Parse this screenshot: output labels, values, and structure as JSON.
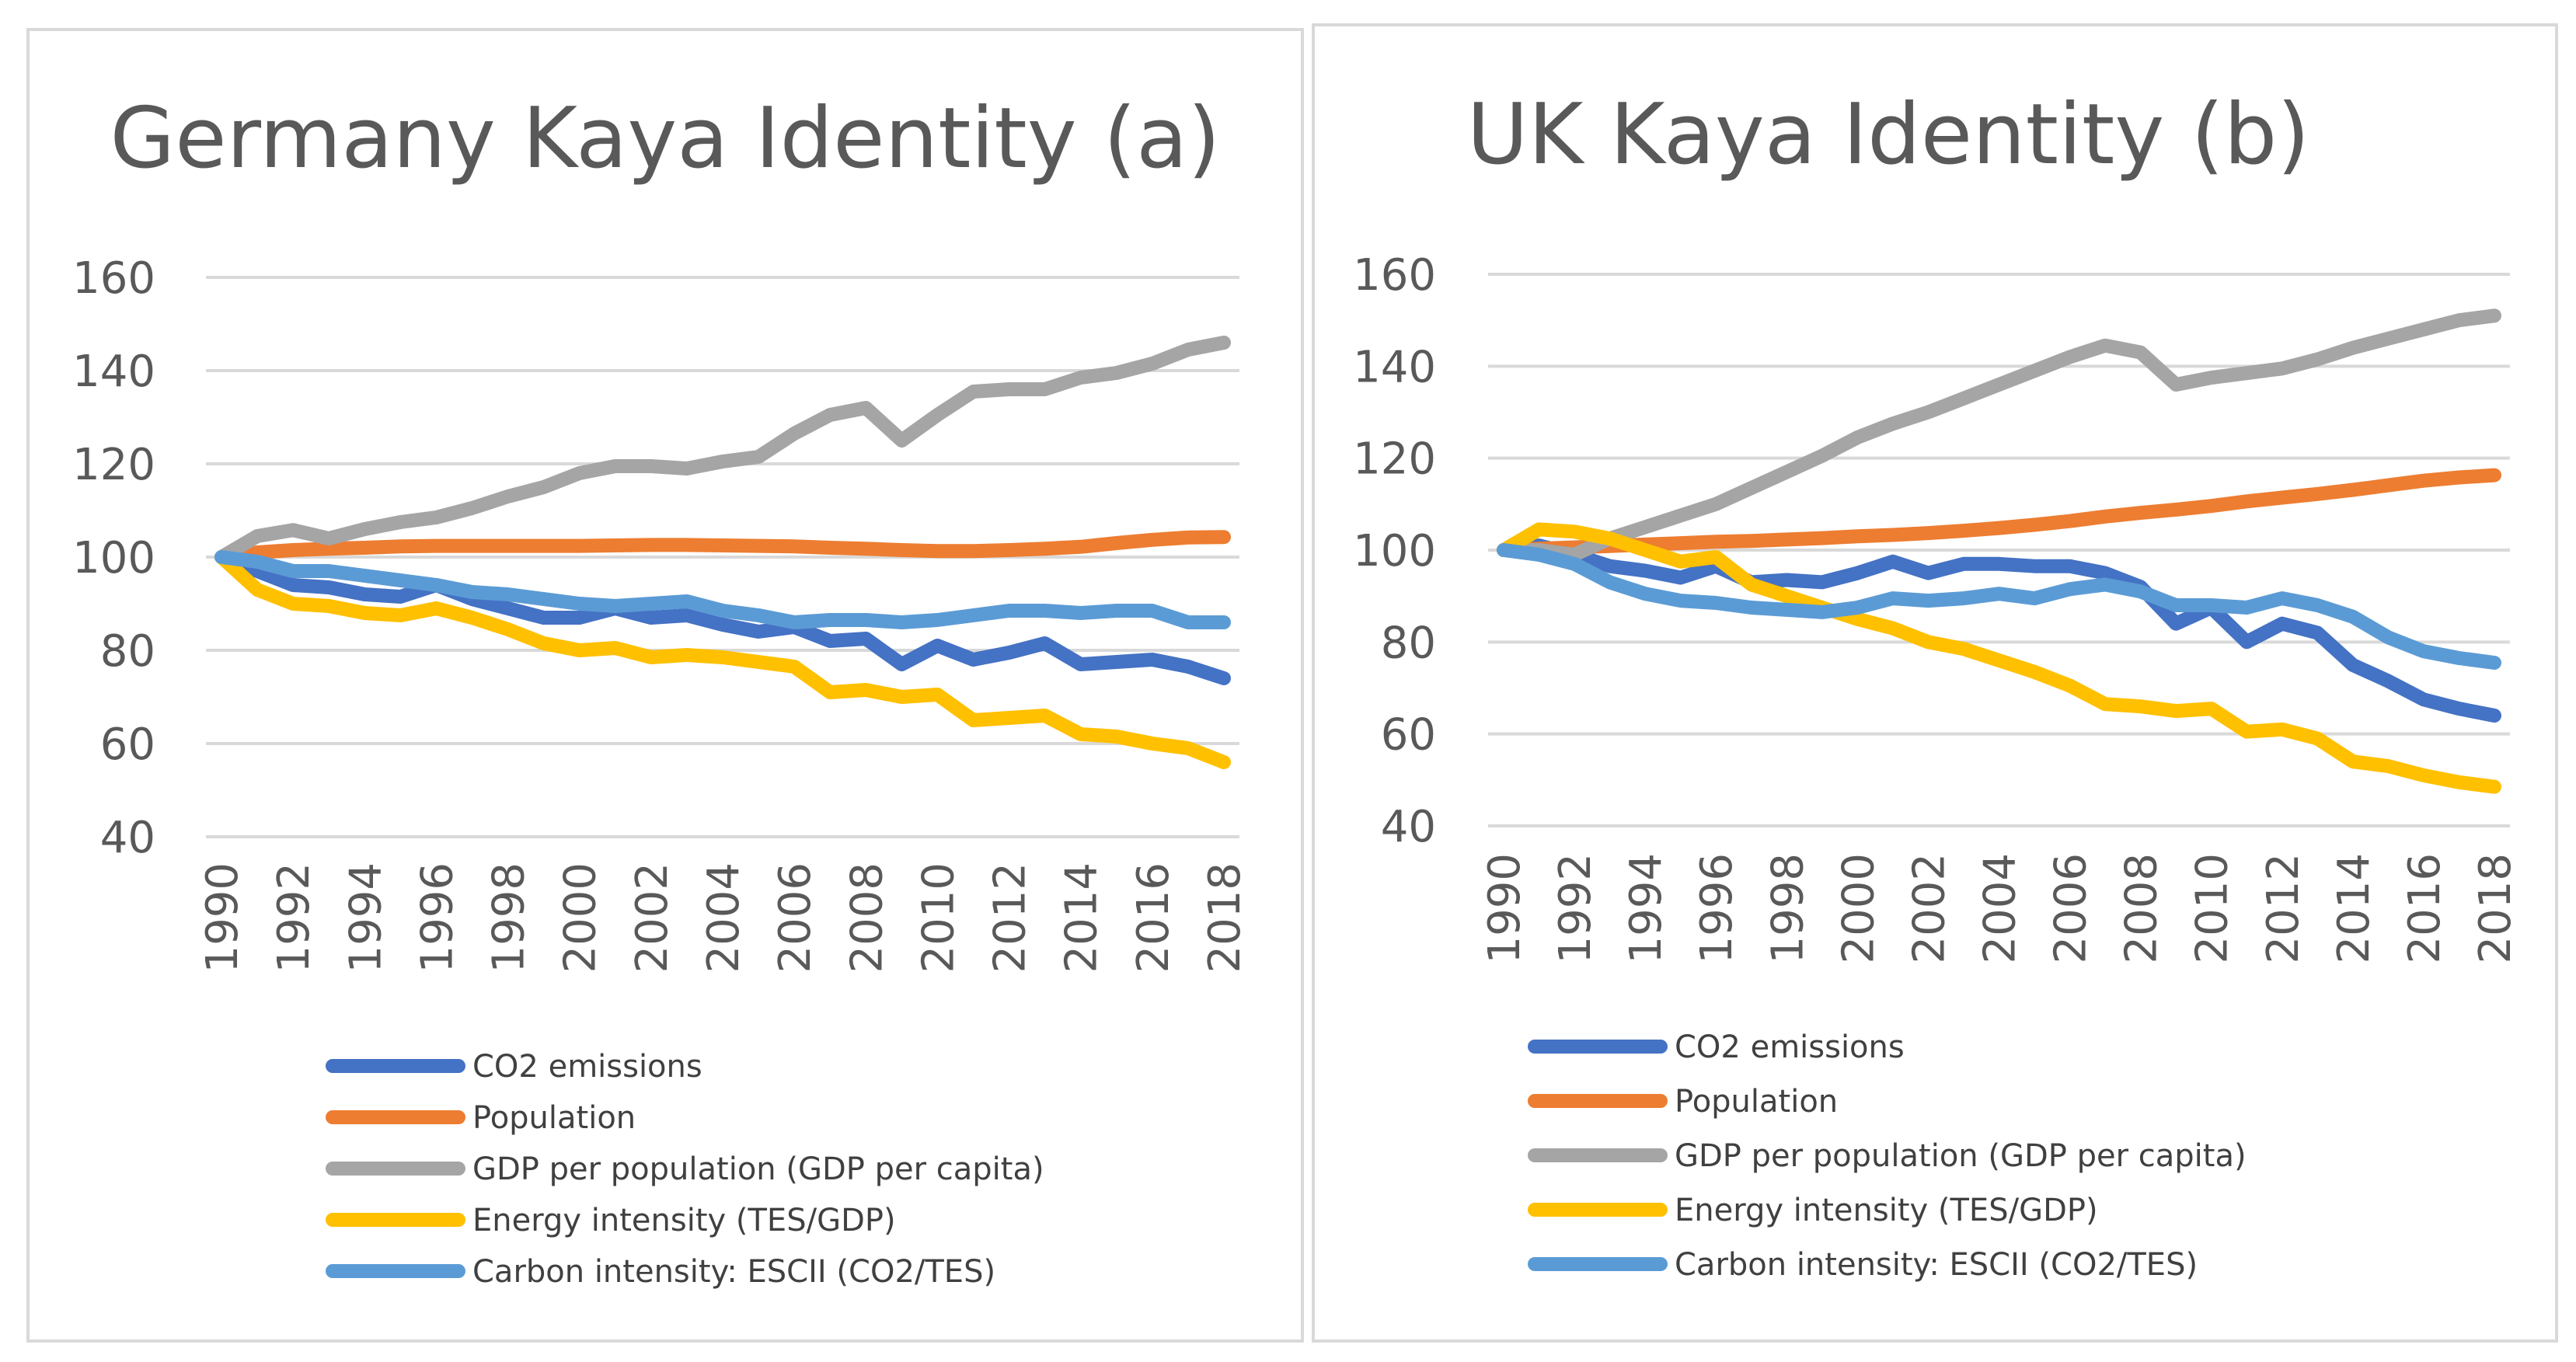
{
  "chart_data": [
    {
      "type": "line",
      "title": "Germany Kaya Identity (a)",
      "xlabel": "",
      "ylabel": "",
      "ylim": [
        40,
        160
      ],
      "yticks": [
        40,
        60,
        80,
        100,
        120,
        140,
        160
      ],
      "grid": true,
      "x": [
        1990,
        1991,
        1992,
        1993,
        1994,
        1995,
        1996,
        1997,
        1998,
        1999,
        2000,
        2001,
        2002,
        2003,
        2004,
        2005,
        2006,
        2007,
        2008,
        2009,
        2010,
        2011,
        2012,
        2013,
        2014,
        2015,
        2016,
        2017,
        2018
      ],
      "xticks": [
        1990,
        1992,
        1994,
        1996,
        1998,
        2000,
        2002,
        2004,
        2006,
        2008,
        2010,
        2012,
        2014,
        2016,
        2018
      ],
      "legend_position": "bottom",
      "series": [
        {
          "name": "CO2 emissions",
          "color": "#4472C4",
          "values": [
            100,
            97,
            94,
            93.5,
            92,
            91.5,
            94,
            91,
            89,
            87,
            87,
            89,
            87,
            87.5,
            85.5,
            84,
            85,
            82,
            82.5,
            77,
            81,
            78,
            79.5,
            81.5,
            77,
            77.5,
            78,
            76.5,
            74
          ]
        },
        {
          "name": "Population",
          "color": "#ED7D31",
          "values": [
            100,
            101,
            101.5,
            101.8,
            102,
            102.3,
            102.4,
            102.4,
            102.4,
            102.4,
            102.4,
            102.5,
            102.6,
            102.6,
            102.5,
            102.4,
            102.3,
            102,
            101.8,
            101.5,
            101.3,
            101.3,
            101.5,
            101.8,
            102.2,
            103,
            103.7,
            104.2,
            104.3
          ]
        },
        {
          "name": "GDP per population (GDP per capita)",
          "color": "#A5A5A5",
          "values": [
            100,
            104.5,
            105.8,
            104,
            106,
            107.5,
            108.5,
            110.5,
            113,
            115,
            118,
            119.5,
            119.5,
            119,
            120.5,
            121.5,
            126.5,
            130.5,
            132,
            125,
            130.5,
            135.5,
            136,
            136,
            138.5,
            139.5,
            141.5,
            144.5,
            146
          ]
        },
        {
          "name": "Energy intensity (TES/GDP)",
          "color": "#FFC000",
          "values": [
            100,
            93,
            90,
            89.5,
            88,
            87.5,
            89,
            87,
            84.5,
            81.5,
            80,
            80.5,
            78.5,
            79,
            78.5,
            77.5,
            76.5,
            71,
            71.5,
            70,
            70.5,
            65,
            65.5,
            66,
            62,
            61.5,
            60,
            59,
            56
          ]
        },
        {
          "name": "Carbon intensity: ESCII (CO2/TES)",
          "color": "#5B9BD5",
          "values": [
            100,
            99,
            97,
            97,
            96,
            95,
            94,
            92.5,
            92,
            91,
            90,
            89.5,
            90,
            90.5,
            88.5,
            87.5,
            86,
            86.5,
            86.5,
            86,
            86.5,
            87.5,
            88.5,
            88.5,
            88,
            88.5,
            88.5,
            86,
            86
          ]
        }
      ]
    },
    {
      "type": "line",
      "title": "UK Kaya Identity (b)",
      "xlabel": "",
      "ylabel": "",
      "ylim": [
        40,
        160
      ],
      "yticks": [
        40,
        60,
        80,
        100,
        120,
        140,
        160
      ],
      "grid": true,
      "x": [
        1990,
        1991,
        1992,
        1993,
        1994,
        1995,
        1996,
        1997,
        1998,
        1999,
        2000,
        2001,
        2002,
        2003,
        2004,
        2005,
        2006,
        2007,
        2008,
        2009,
        2010,
        2011,
        2012,
        2013,
        2014,
        2015,
        2016,
        2017,
        2018
      ],
      "xticks": [
        1990,
        1992,
        1994,
        1996,
        1998,
        2000,
        2002,
        2004,
        2006,
        2008,
        2010,
        2012,
        2014,
        2016,
        2018
      ],
      "legend_position": "bottom",
      "series": [
        {
          "name": "CO2 emissions",
          "color": "#4472C4",
          "values": [
            100,
            101,
            99,
            96.5,
            95.5,
            94,
            96.5,
            93,
            93.5,
            93,
            95,
            97.5,
            95,
            97,
            97,
            96.5,
            96.5,
            95,
            92,
            84,
            87.5,
            80,
            84,
            82,
            75,
            71.5,
            67.5,
            65.5,
            64
          ]
        },
        {
          "name": "Population",
          "color": "#ED7D31",
          "values": [
            100,
            100.3,
            100.6,
            100.9,
            101.2,
            101.5,
            101.8,
            102,
            102.3,
            102.6,
            103,
            103.3,
            103.7,
            104.2,
            104.8,
            105.5,
            106.3,
            107.3,
            108.1,
            108.8,
            109.6,
            110.6,
            111.4,
            112.2,
            113.1,
            114.1,
            115.1,
            115.8,
            116.3
          ]
        },
        {
          "name": "GDP per population (GDP per capita)",
          "color": "#A5A5A5",
          "values": [
            100,
            100,
            99,
            102.5,
            105,
            107.5,
            110,
            113.5,
            117,
            120.5,
            124.5,
            127.5,
            130,
            133,
            136,
            139,
            142,
            144.5,
            143,
            136,
            137.5,
            138.5,
            139.5,
            141.5,
            144,
            146,
            148,
            150,
            151
          ]
        },
        {
          "name": "Energy intensity (TES/GDP)",
          "color": "#FFC000",
          "values": [
            100,
            104.5,
            104,
            102.5,
            100,
            97.5,
            98.5,
            92.5,
            90,
            87.5,
            85,
            83,
            80,
            78.5,
            76,
            73.5,
            70.5,
            66.5,
            66,
            65,
            65.5,
            60.5,
            61,
            59,
            54,
            53,
            51,
            49.5,
            48.5
          ]
        },
        {
          "name": "Carbon intensity: ESCII (CO2/TES)",
          "color": "#5B9BD5",
          "values": [
            100,
            99,
            97,
            93,
            90.5,
            89,
            88.5,
            87.5,
            87,
            86.5,
            87.5,
            89.5,
            89,
            89.5,
            90.5,
            89.5,
            91.5,
            92.5,
            91,
            88,
            88,
            87.5,
            89.5,
            88,
            85.5,
            81,
            78,
            76.5,
            75.5
          ]
        }
      ]
    }
  ]
}
